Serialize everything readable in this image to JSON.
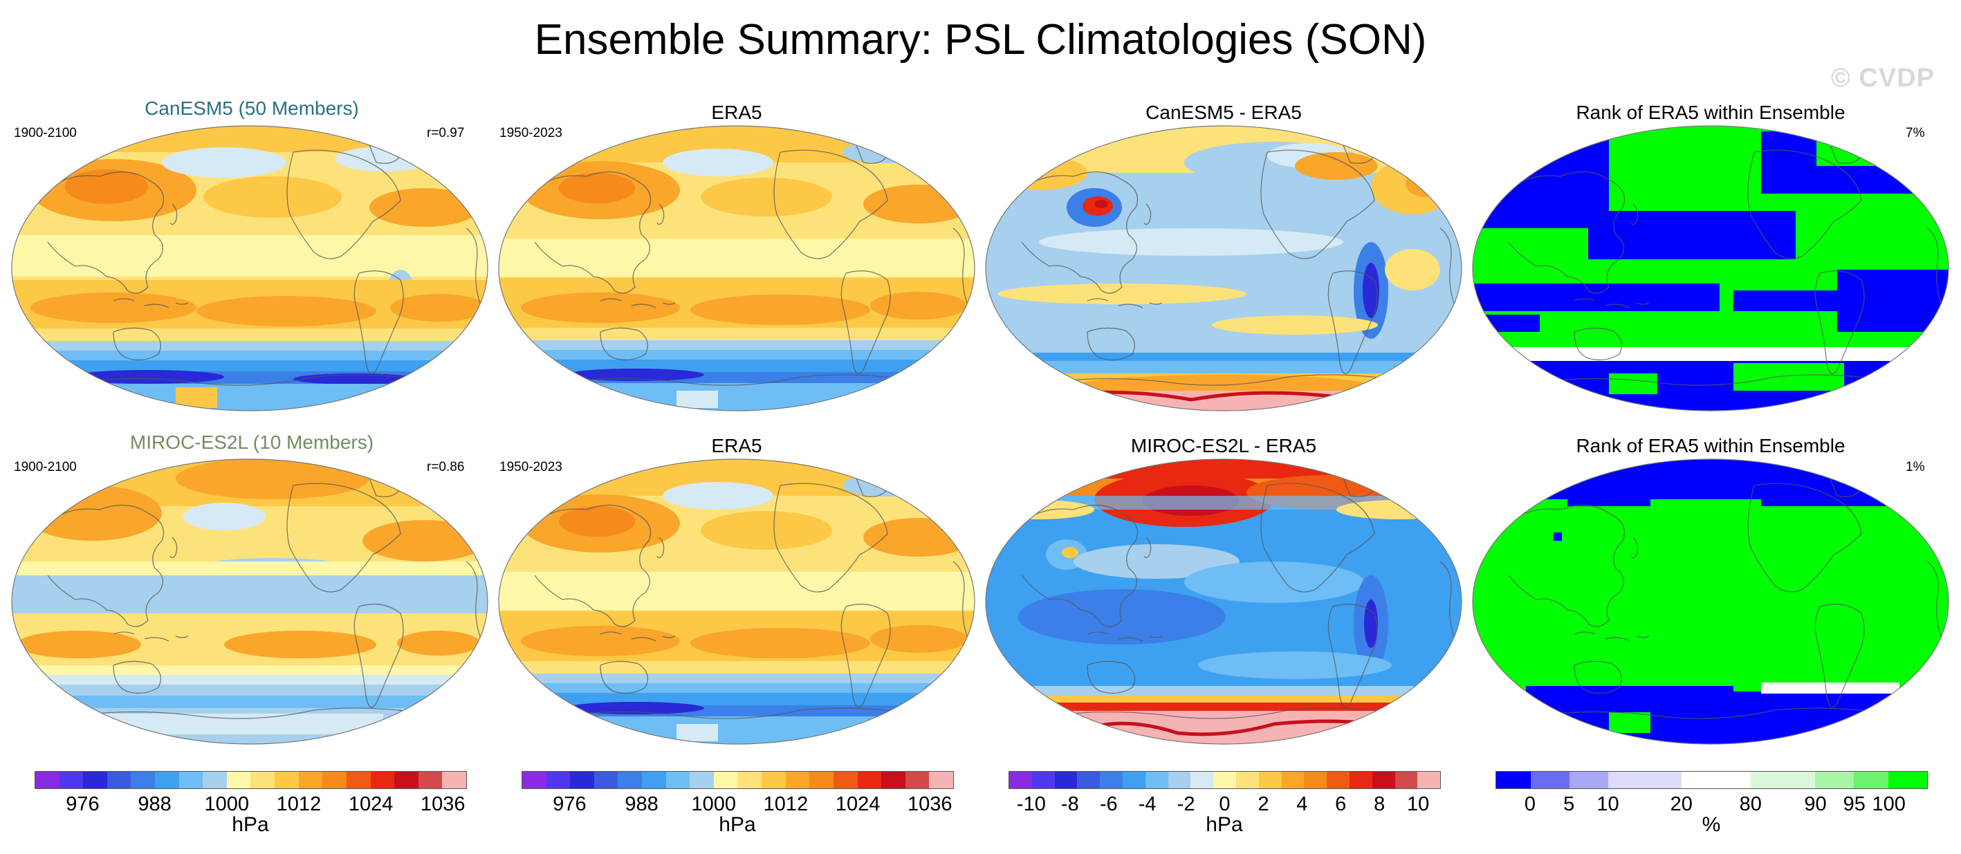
{
  "title": "Ensemble Summary: PSL Climatologies (SON)",
  "watermark": "© CVDP",
  "rows": [
    {
      "model": {
        "title": "CanESM5 (50 Members)",
        "title_color": "#2a6f86",
        "years": "1900-2100",
        "corr": "r=0.97"
      },
      "obs": {
        "title": "ERA5",
        "years": "1950-2023"
      },
      "diff": {
        "title": "CanESM5 - ERA5"
      },
      "rank": {
        "title": "Rank of ERA5 within Ensemble",
        "pct": "7%"
      }
    },
    {
      "model": {
        "title": "MIROC-ES2L (10 Members)",
        "title_color": "#6f8f5f",
        "years": "1900-2100",
        "corr": "r=0.86"
      },
      "obs": {
        "title": "ERA5",
        "years": "1950-2023"
      },
      "diff": {
        "title": "MIROC-ES2L - ERA5"
      },
      "rank": {
        "title": "Rank of ERA5 within Ensemble",
        "pct": "1%"
      }
    }
  ],
  "colorbars": {
    "psl": {
      "colors": [
        "#8a2be2",
        "#5038f0",
        "#2929d8",
        "#3a5be0",
        "#3c7fe8",
        "#3ea0f0",
        "#6ebdf5",
        "#a6d0ee",
        "#fff7a8",
        "#fde27a",
        "#fcc845",
        "#f9a62b",
        "#f68a1b",
        "#f05a14",
        "#e82810",
        "#c8101a",
        "#d34a4a",
        "#f6b3b3"
      ],
      "labels": [
        "976",
        "988",
        "1000",
        "1012",
        "1024",
        "1036"
      ],
      "unit": "hPa"
    },
    "diff": {
      "colors": [
        "#8a2be2",
        "#5038f0",
        "#2929d8",
        "#3a5be0",
        "#3c7fe8",
        "#3ea0f0",
        "#6ebdf5",
        "#a6d0ee",
        "#d6eaf5",
        "#fff7a8",
        "#fde27a",
        "#fcc845",
        "#f9a62b",
        "#f68a1b",
        "#f05a14",
        "#e82810",
        "#c8101a",
        "#d34a4a",
        "#f6b3b3"
      ],
      "labels": [
        "-10",
        "-8",
        "-6",
        "-4",
        "-2",
        "0",
        "2",
        "4",
        "6",
        "8",
        "10"
      ],
      "unit": "hPa"
    },
    "rank": {
      "colors": [
        "#0000ff",
        "#6c6cf2",
        "#a8a8f5",
        "#dcdcfa",
        "#ffffff",
        "#dcf7dc",
        "#a8f5a8",
        "#6cf26c",
        "#00ff00"
      ],
      "labels": [
        "0",
        "5",
        "10",
        "20",
        "80",
        "90",
        "95",
        "100"
      ],
      "unit": "%"
    }
  }
}
